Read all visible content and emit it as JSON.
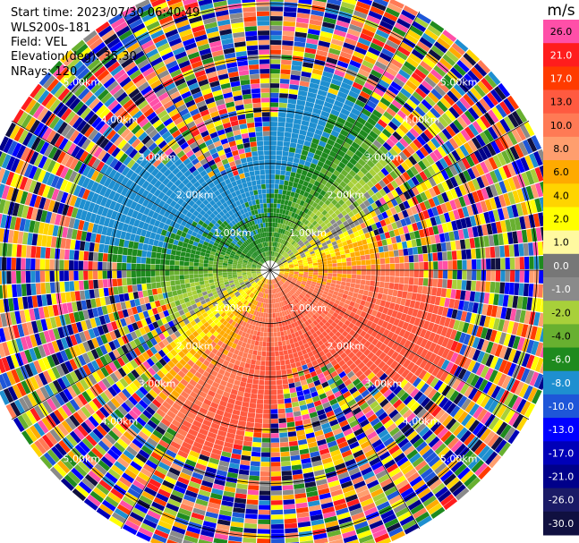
{
  "header": {
    "start_time": "Start time: 2023/07/30 06:40:49",
    "instrument": "WLS200s-181",
    "field": "Field: VEL",
    "elevation": "Elevation(deg): 35.30",
    "nrays": "NRays: 120"
  },
  "chart_data": {
    "type": "heatmap",
    "subtype": "polar-ppi",
    "range_rings_km": [
      1.0,
      2.0,
      3.0,
      4.0,
      5.0
    ],
    "ring_labels": [
      "1.00km",
      "2.00km",
      "3.00km",
      "4.00km",
      "5.00km"
    ],
    "max_range_km": 5.6,
    "nrays": 120,
    "field": "VEL",
    "colorbar": {
      "unit": "m/s",
      "ticks": [
        "26.0",
        "21.0",
        "17.0",
        "13.0",
        "10.0",
        "8.0",
        "6.0",
        "4.0",
        "2.0",
        "1.0",
        "0.0",
        "-1.0",
        "-2.0",
        "-4.0",
        "-6.0",
        "-8.0",
        "-10.0",
        "-13.0",
        "-17.0",
        "-21.0",
        "-26.0",
        "-30.0"
      ],
      "colors": [
        "#ff4fa8",
        "#ff1d1d",
        "#ff3b00",
        "#ff5a40",
        "#ff7a55",
        "#ff9e6e",
        "#ffaa00",
        "#ffd400",
        "#ffff00",
        "#fff9a0",
        "#777777",
        "#8a8a8a",
        "#a8d03a",
        "#68b030",
        "#1e8a1e",
        "#1e8fd0",
        "#1e56d8",
        "#0000ff",
        "#0000b8",
        "#00008a",
        "#1a1a66",
        "#101040"
      ]
    }
  }
}
